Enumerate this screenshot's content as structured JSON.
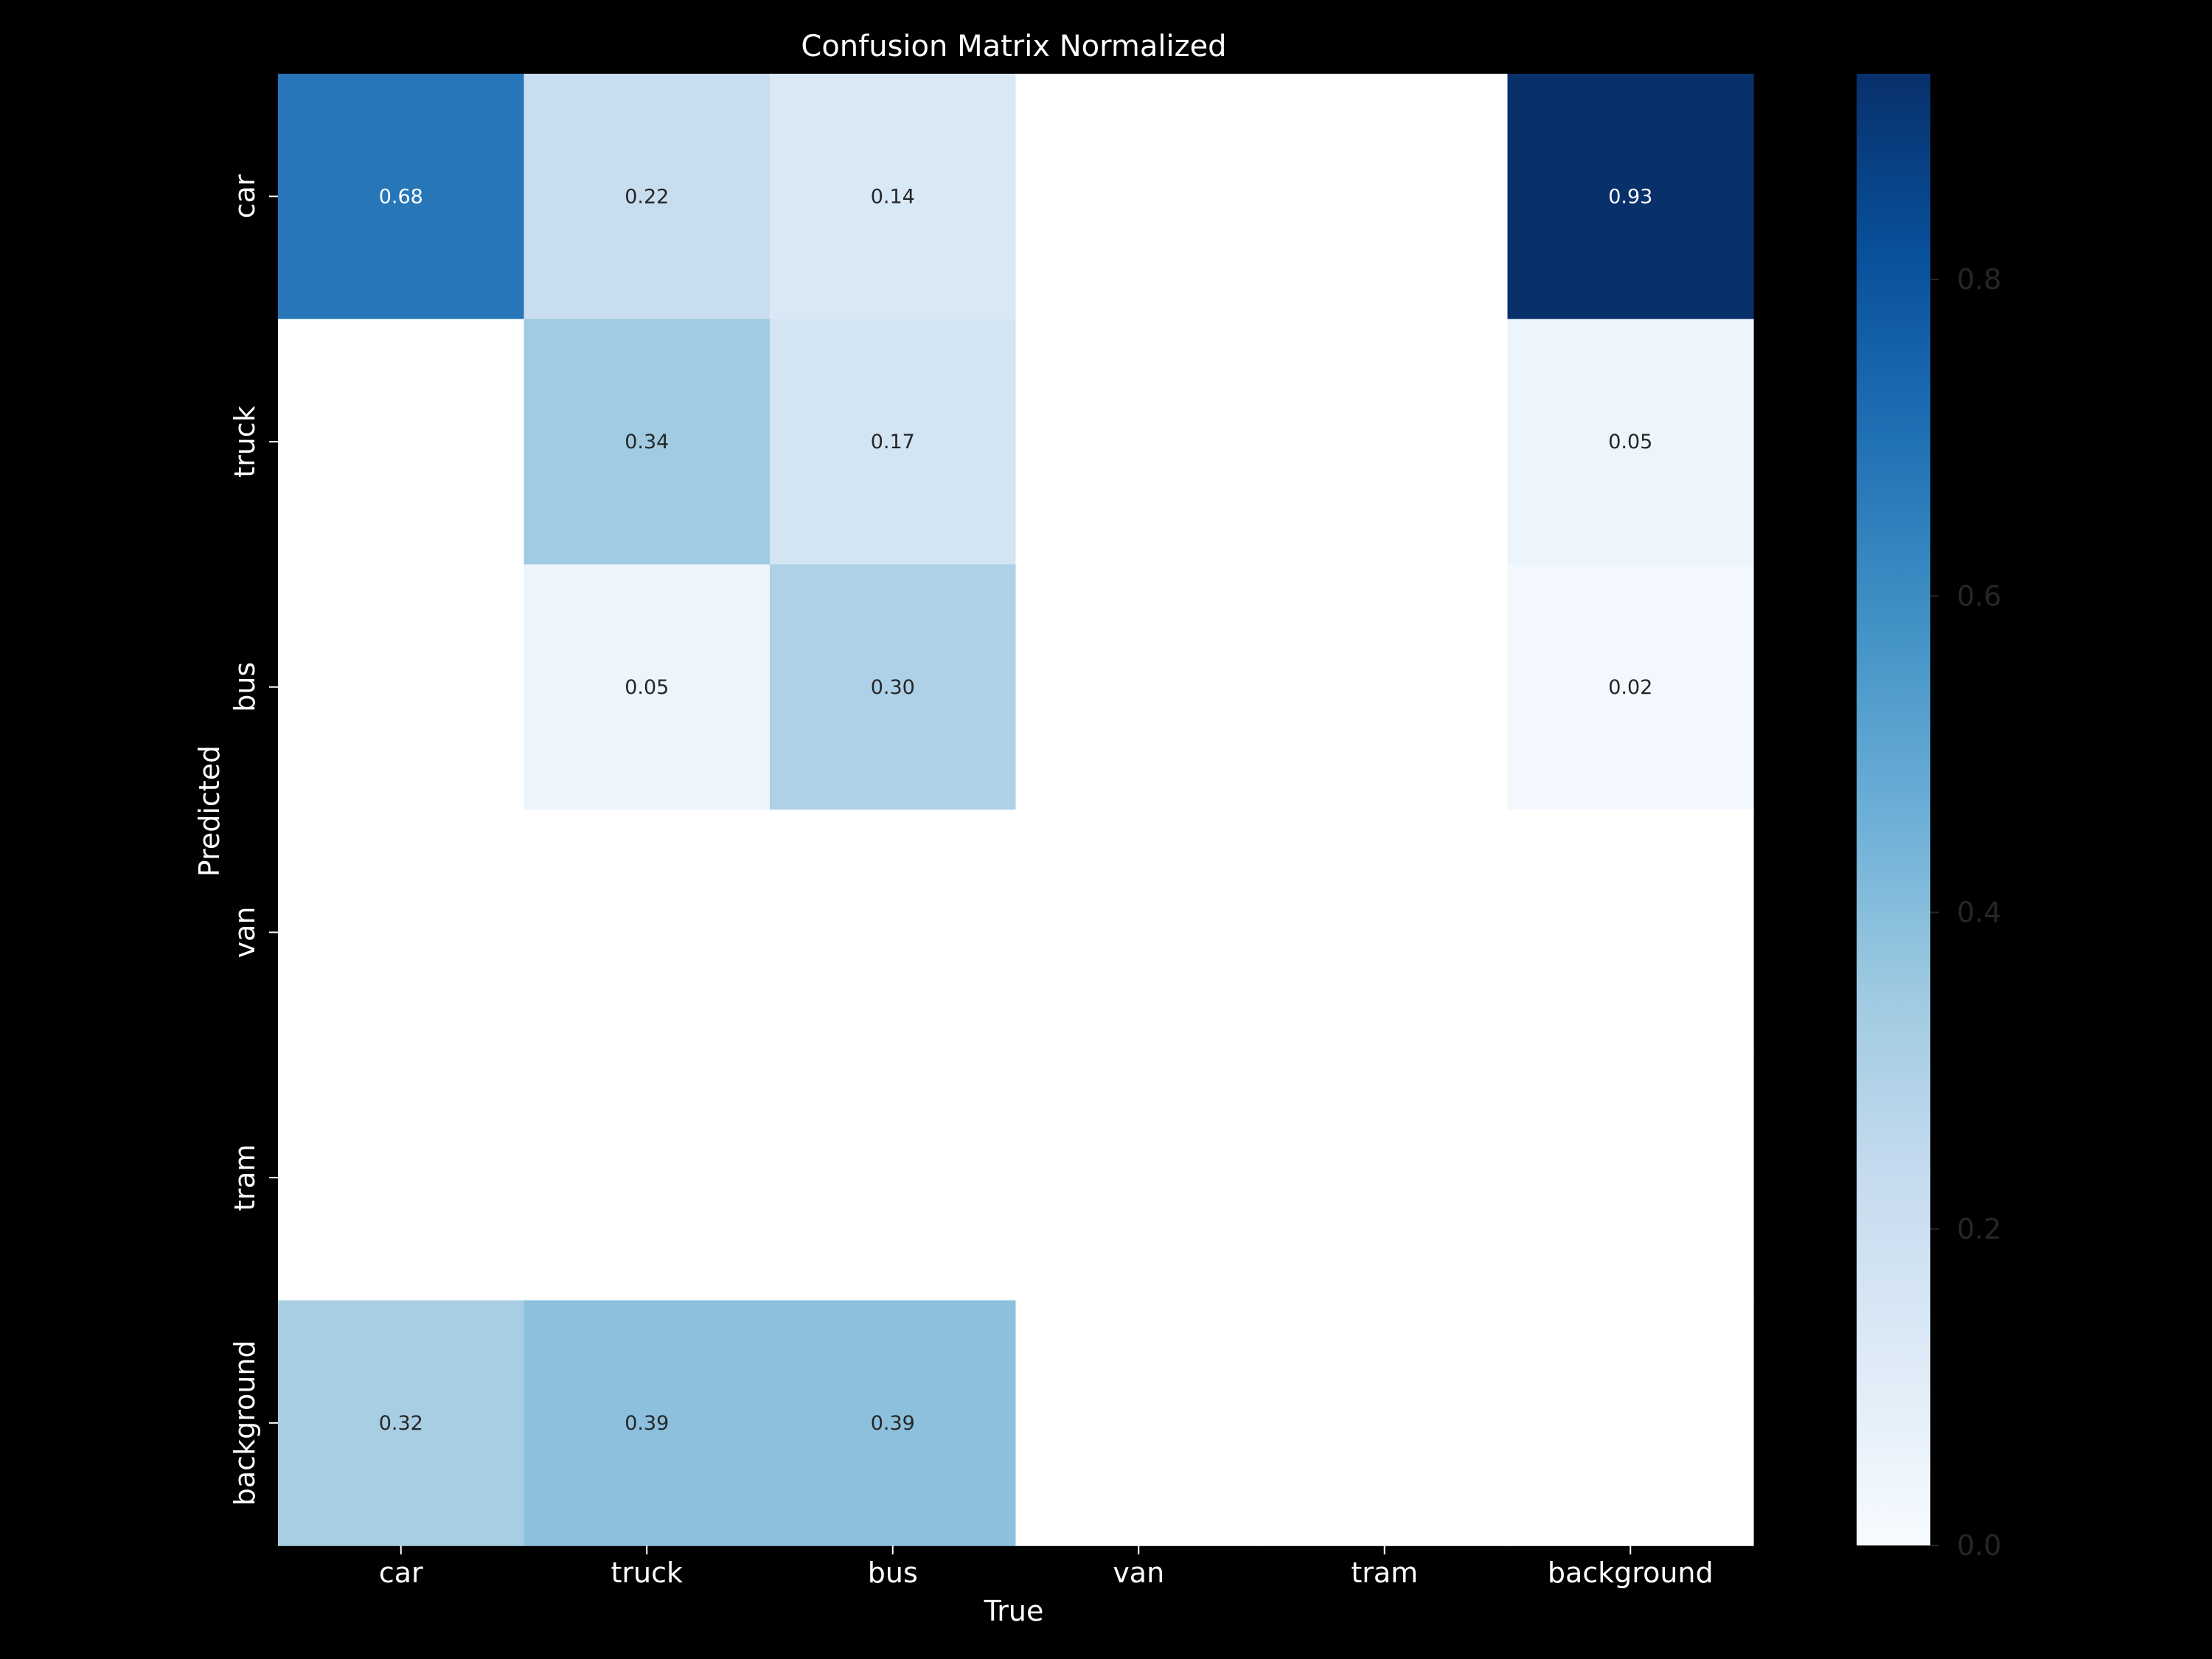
{
  "chart_data": {
    "type": "heatmap",
    "title": "Confusion Matrix Normalized",
    "xlabel": "True",
    "ylabel": "Predicted",
    "x_categories": [
      "car",
      "truck",
      "bus",
      "van",
      "tram",
      "background"
    ],
    "y_categories": [
      "car",
      "truck",
      "bus",
      "van",
      "tram",
      "background"
    ],
    "values": [
      [
        0.68,
        0.22,
        0.14,
        null,
        null,
        0.93
      ],
      [
        null,
        0.34,
        0.17,
        null,
        null,
        0.05
      ],
      [
        null,
        0.05,
        0.3,
        null,
        null,
        0.02
      ],
      [
        null,
        null,
        null,
        null,
        null,
        null
      ],
      [
        null,
        null,
        null,
        null,
        null,
        null
      ],
      [
        0.32,
        0.39,
        0.39,
        null,
        null,
        null
      ]
    ],
    "value_labels": [
      [
        "0.68",
        "0.22",
        "0.14",
        "",
        "",
        "0.93"
      ],
      [
        "",
        "0.34",
        "0.17",
        "",
        "",
        "0.05"
      ],
      [
        "",
        "0.05",
        "0.30",
        "",
        "",
        "0.02"
      ],
      [
        "",
        "",
        "",
        "",
        "",
        ""
      ],
      [
        "",
        "",
        "",
        "",
        "",
        ""
      ],
      [
        "0.32",
        "0.39",
        "0.39",
        "",
        "",
        ""
      ]
    ],
    "colormap": "Blues",
    "colorbar": {
      "range": [
        0,
        0.93
      ],
      "ticks": [
        0.0,
        0.2,
        0.4,
        0.6,
        0.8
      ],
      "tick_labels": [
        "0.0",
        "0.2",
        "0.4",
        "0.6",
        "0.8"
      ]
    },
    "colors": {
      "background": "#000000",
      "empty_cell": "#ffffff",
      "text_light": "#ffffff",
      "text_dark": "#262626",
      "colorbar_tick_text": "#262626"
    }
  }
}
